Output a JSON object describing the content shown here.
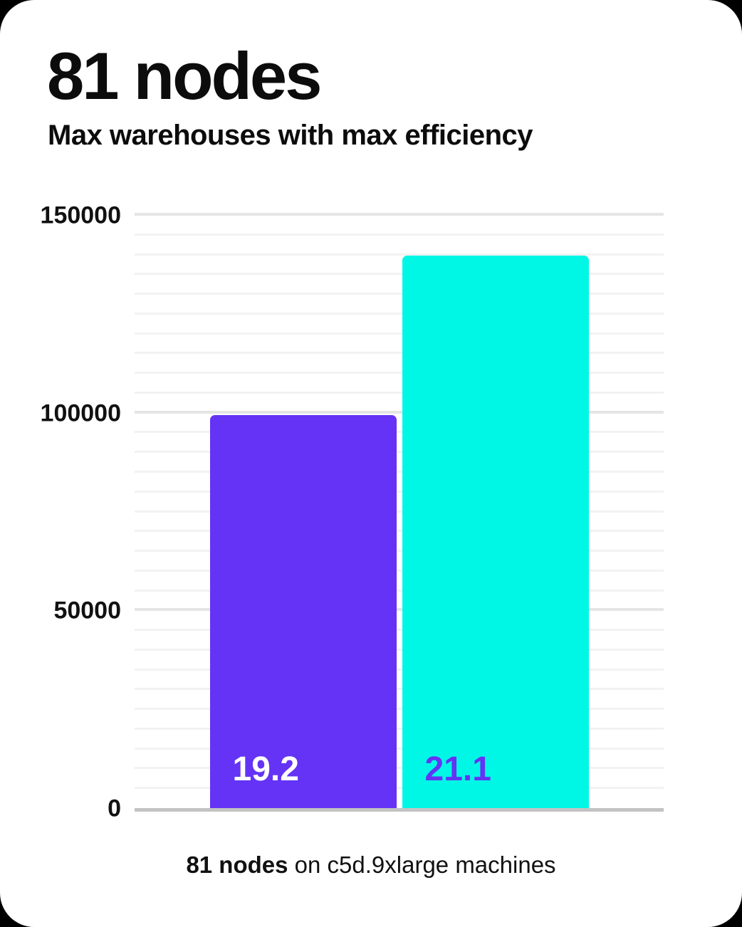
{
  "card": {
    "page_background": "#000000",
    "card_background": "#ffffff"
  },
  "header": {
    "title": "81 nodes",
    "subtitle": "Max warehouses with max efficiency"
  },
  "chart_data": {
    "type": "bar",
    "title": "81 nodes",
    "subtitle": "Max warehouses with max efficiency",
    "categories": [
      "bar-1",
      "bar-2"
    ],
    "values": [
      99500,
      140000
    ],
    "bar_value_labels": [
      "19.2",
      "21.1"
    ],
    "bar_colors": [
      "#6433f5",
      "#00f7e6"
    ],
    "bar_label_text_colors": [
      "#ffffff",
      "#6433f5"
    ],
    "ylim": [
      0,
      150000
    ],
    "ytick_labels": [
      "0",
      "50000",
      "100000",
      "150000"
    ],
    "ytick_values": [
      0,
      50000,
      100000,
      150000
    ],
    "grid": {
      "enabled": true,
      "minor_step": 5000,
      "major_step": 50000,
      "minor_color": "#f2f2f2",
      "major_color": "#e5e5e5",
      "baseline_color": "#c3c3c3"
    },
    "legend": false,
    "xlabel": "",
    "ylabel": "",
    "caption": "81 nodes on c5d.9xlarge machines"
  },
  "caption": {
    "bold_part": "81 nodes",
    "regular_part": " on c5d.9xlarge machines"
  }
}
